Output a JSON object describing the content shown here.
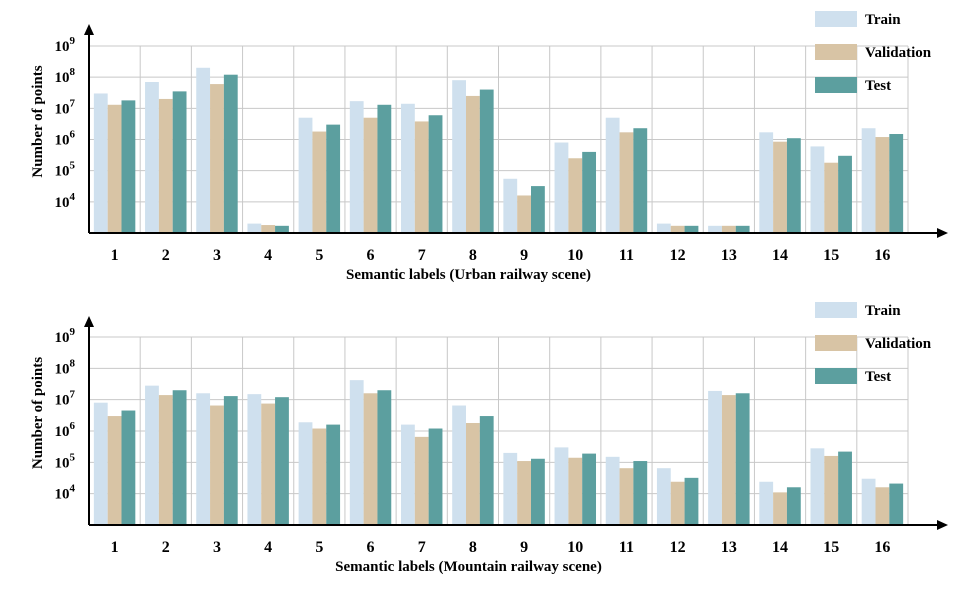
{
  "colors": {
    "train": "#cfe0ee",
    "validation": "#d8c4a5",
    "test": "#5c9f9f",
    "grid": "#c8c8c8",
    "axis": "#000000"
  },
  "chart_data": [
    {
      "type": "bar",
      "id": "urban",
      "xlabel": "Semantic labels (Urban railway scene)",
      "ylabel": "Number of points",
      "yscale": "log",
      "ylim": [
        1000,
        1000000000
      ],
      "yticks": [
        {
          "value": 10000,
          "base": "10",
          "exp": "4"
        },
        {
          "value": 100000,
          "base": "10",
          "exp": "5"
        },
        {
          "value": 1000000,
          "base": "10",
          "exp": "6"
        },
        {
          "value": 10000000,
          "base": "10",
          "exp": "7"
        },
        {
          "value": 100000000,
          "base": "10",
          "exp": "8"
        },
        {
          "value": 1000000000,
          "base": "10",
          "exp": "9"
        }
      ],
      "grid": true,
      "legend_position": "top-right",
      "categories": [
        "1",
        "2",
        "3",
        "4",
        "5",
        "6",
        "7",
        "8",
        "9",
        "10",
        "11",
        "12",
        "13",
        "14",
        "15",
        "16"
      ],
      "series": [
        {
          "name": "Train",
          "key": "train",
          "values": [
            30000000,
            70000000,
            200000000,
            2000,
            5000000,
            17000000,
            14000000,
            80000000,
            55000,
            800000,
            5000000,
            2000,
            1700,
            1700000,
            600000,
            2300000
          ]
        },
        {
          "name": "Validation",
          "key": "validation",
          "values": [
            13000000,
            20000000,
            60000000,
            1800,
            1800000,
            5000000,
            3800000,
            25000000,
            16000,
            250000,
            1700000,
            1700,
            1700,
            850000,
            180000,
            1200000
          ]
        },
        {
          "name": "Test",
          "key": "test",
          "values": [
            18000000,
            35000000,
            120000000,
            1700,
            3000000,
            13000000,
            6000000,
            40000000,
            32000,
            400000,
            2300000,
            1700,
            1700,
            1100000,
            300000,
            1500000
          ]
        }
      ]
    },
    {
      "type": "bar",
      "id": "mountain",
      "xlabel": "Semantic labels (Mountain railway scene)",
      "ylabel": "Number of points",
      "yscale": "log",
      "ylim": [
        1000,
        1000000000
      ],
      "yticks": [
        {
          "value": 10000,
          "base": "10",
          "exp": "4"
        },
        {
          "value": 100000,
          "base": "10",
          "exp": "5"
        },
        {
          "value": 1000000,
          "base": "10",
          "exp": "6"
        },
        {
          "value": 10000000,
          "base": "10",
          "exp": "7"
        },
        {
          "value": 100000000,
          "base": "10",
          "exp": "8"
        },
        {
          "value": 1000000000,
          "base": "10",
          "exp": "9"
        }
      ],
      "grid": true,
      "legend_position": "top-right",
      "categories": [
        "1",
        "2",
        "3",
        "4",
        "5",
        "6",
        "7",
        "8",
        "9",
        "10",
        "11",
        "12",
        "13",
        "14",
        "15",
        "16"
      ],
      "series": [
        {
          "name": "Train",
          "key": "train",
          "values": [
            8000000,
            28000000,
            16000000,
            15000000,
            1900000,
            42000000,
            1600000,
            6500000,
            200000,
            300000,
            150000,
            65000,
            19000000,
            24000,
            280000,
            30000
          ]
        },
        {
          "name": "Validation",
          "key": "validation",
          "values": [
            3000000,
            14000000,
            6500000,
            7500000,
            1200000,
            16000000,
            650000,
            1800000,
            110000,
            140000,
            65000,
            24000,
            14000000,
            11000,
            160000,
            16000
          ]
        },
        {
          "name": "Test",
          "key": "test",
          "values": [
            4500000,
            20000000,
            13000000,
            12000000,
            1600000,
            20000000,
            1200000,
            3000000,
            130000,
            190000,
            110000,
            32000,
            16000000,
            16000,
            220000,
            21000
          ]
        }
      ]
    }
  ]
}
